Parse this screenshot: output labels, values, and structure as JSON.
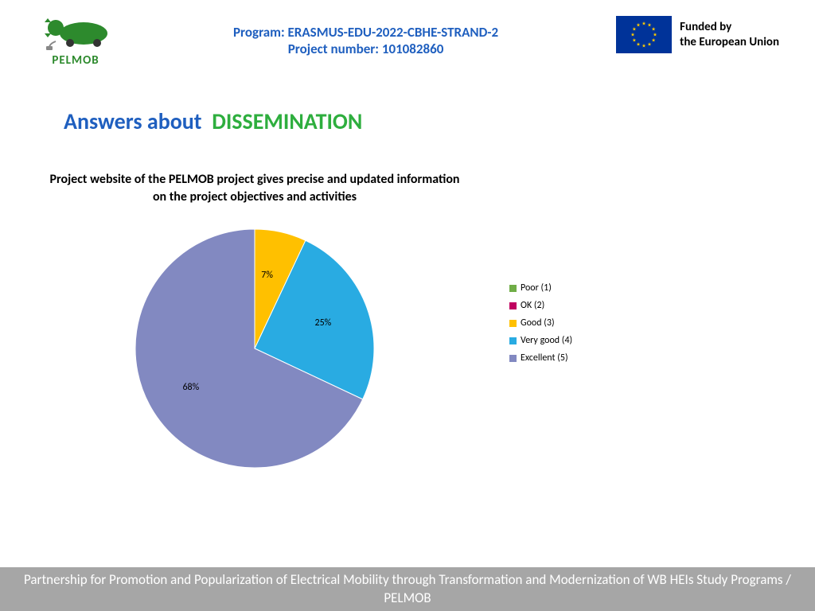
{
  "header": {
    "logo_text": "PELMOB",
    "logo_text_color": "#2d8a2d",
    "program_line": "Program: ERASMUS-EDU-2022-CBHE-STRAND-2",
    "project_line": "Project number: 101082860",
    "center_color": "#1f5fbf",
    "eu_line1": "Funded by",
    "eu_line2": "the European Union",
    "eu_text_color": "#000000",
    "eu_flag_bg": "#003399",
    "eu_star_color": "#ffcc00"
  },
  "title": {
    "part1": "Answers about",
    "part1_color": "#1f5fbf",
    "part2": "DISSEMINATION",
    "part2_color": "#2eae3e"
  },
  "chart": {
    "type": "pie",
    "title": "Project website of the PELMOB project gives precise and updated information on the project objectives and activities",
    "title_color": "#000000",
    "title_fontsize": 16,
    "background_color": "#ffffff",
    "radius": 150,
    "start_angle_deg": -90,
    "slices": [
      {
        "key": "poor",
        "label": "Poor (1)",
        "value": 0,
        "color": "#70ad47",
        "show_label": false
      },
      {
        "key": "ok",
        "label": "OK (2)",
        "value": 0,
        "color": "#c00060",
        "show_label": false
      },
      {
        "key": "good",
        "label": "Good (3)",
        "value": 7,
        "color": "#ffc000",
        "show_label": true
      },
      {
        "key": "verygood",
        "label": "Very good (4)",
        "value": 25,
        "color": "#29abe2",
        "show_label": true
      },
      {
        "key": "excellent",
        "label": "Excellent (5)",
        "value": 68,
        "color": "#8289c1",
        "show_label": true
      }
    ],
    "label_fontsize": 12,
    "label_radius_factor": 0.62,
    "stroke_color": "#ffffff",
    "stroke_width": 1
  },
  "footer": {
    "text": "Partnership for Promotion and Popularization of Electrical Mobility through Transformation and Modernization of WB HEIs Study Programs / PELMOB",
    "bg_color": "#a6a6a6",
    "text_color": "#ffffff"
  }
}
